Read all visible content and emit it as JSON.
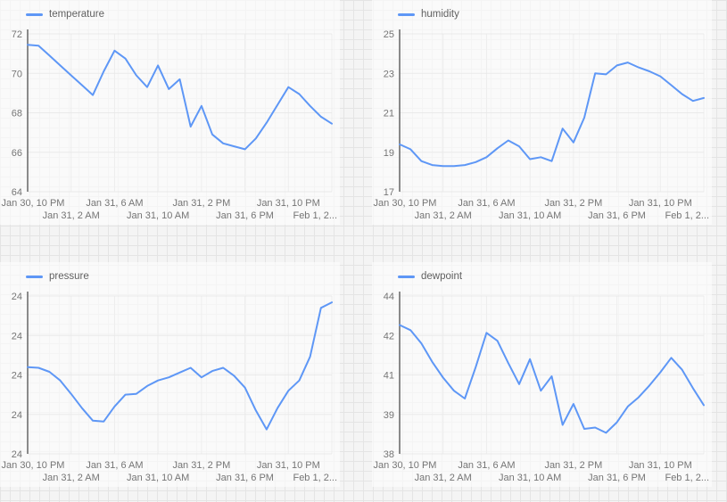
{
  "theme": {
    "line_color": "#5e97f6",
    "axis_color": "#6e6e6e",
    "label_color": "#757575",
    "legend_text_color": "#616161",
    "panel_gridline_color": "#e9e9e9",
    "paper_grid_color": "#e4e4e4",
    "background_color": "#f4f4f4"
  },
  "chart_data": [
    {
      "type": "line",
      "title": "temperature",
      "legend": [
        "temperature"
      ],
      "legend_position": "top-left",
      "color": "#5e97f6",
      "grid": true,
      "ylim": [
        64,
        72
      ],
      "y_tick_labels": [
        "72",
        "70",
        "68",
        "66",
        "64"
      ],
      "x_tick_hours": [
        0,
        4,
        8,
        12,
        16,
        20,
        24,
        28
      ],
      "x_tick_labels": [
        "Jan 30, 10 PM",
        "Jan 31, 2 AM",
        "Jan 31, 6 AM",
        "Jan 31, 10 AM",
        "Jan 31, 2 PM",
        "Jan 31, 6 PM",
        "Jan 31, 10 PM",
        "Feb 1, 2..."
      ],
      "values": [
        71.45,
        71.4,
        70.9,
        70.4,
        69.9,
        69.4,
        68.9,
        70.1,
        71.15,
        70.75,
        69.9,
        69.3,
        70.4,
        69.2,
        69.7,
        67.3,
        68.35,
        66.9,
        66.45,
        66.3,
        66.15,
        66.7,
        67.5,
        68.4,
        69.3,
        68.95,
        68.35,
        67.8,
        67.45
      ]
    },
    {
      "type": "line",
      "title": "humidity",
      "legend": [
        "humidity"
      ],
      "legend_position": "top-left",
      "color": "#5e97f6",
      "grid": true,
      "ylim": [
        17,
        25
      ],
      "y_tick_labels": [
        "25",
        "23",
        "21",
        "19",
        "17"
      ],
      "x_tick_hours": [
        0,
        4,
        8,
        12,
        16,
        20,
        24,
        28
      ],
      "x_tick_labels": [
        "Jan 30, 10 PM",
        "Jan 31, 2 AM",
        "Jan 31, 6 AM",
        "Jan 31, 10 AM",
        "Jan 31, 2 PM",
        "Jan 31, 6 PM",
        "Jan 31, 10 PM",
        "Feb 1, 2..."
      ],
      "values": [
        19.4,
        19.15,
        18.55,
        18.35,
        18.3,
        18.3,
        18.35,
        18.5,
        18.75,
        19.2,
        19.6,
        19.3,
        18.65,
        18.75,
        18.55,
        20.2,
        19.5,
        20.75,
        23.0,
        22.95,
        23.4,
        23.55,
        23.3,
        23.1,
        22.85,
        22.4,
        21.95,
        21.6,
        21.75
      ]
    },
    {
      "type": "line",
      "title": "pressure",
      "legend": [
        "pressure"
      ],
      "legend_position": "top-left",
      "color": "#5e97f6",
      "grid": true,
      "ylim": [
        23.8,
        24.0
      ],
      "y_tick_labels": [
        "24",
        "24",
        "24",
        "24",
        "24"
      ],
      "x_tick_hours": [
        0,
        4,
        8,
        12,
        16,
        20,
        24,
        28
      ],
      "x_tick_labels": [
        "Jan 30, 10 PM",
        "Jan 31, 2 AM",
        "Jan 31, 6 AM",
        "Jan 31, 10 AM",
        "Jan 31, 2 PM",
        "Jan 31, 6 PM",
        "Jan 31, 10 PM",
        "Feb 1, 2..."
      ],
      "values": [
        23.91,
        23.909,
        23.904,
        23.893,
        23.876,
        23.858,
        23.842,
        23.841,
        23.86,
        23.875,
        23.876,
        23.886,
        23.893,
        23.897,
        23.903,
        23.909,
        23.897,
        23.905,
        23.909,
        23.899,
        23.884,
        23.855,
        23.831,
        23.858,
        23.88,
        23.893,
        23.923,
        23.985,
        23.992
      ]
    },
    {
      "type": "line",
      "title": "dewpoint",
      "legend": [
        "dewpoint"
      ],
      "legend_position": "top-left",
      "color": "#5e97f6",
      "grid": true,
      "ylim": [
        38,
        44
      ],
      "y_tick_labels": [
        "44",
        "42",
        "41",
        "39",
        "38"
      ],
      "x_tick_hours": [
        0,
        4,
        8,
        12,
        16,
        20,
        24,
        28
      ],
      "x_tick_labels": [
        "Jan 30, 10 PM",
        "Jan 31, 2 AM",
        "Jan 31, 6 AM",
        "Jan 31, 10 AM",
        "Jan 31, 2 PM",
        "Jan 31, 6 PM",
        "Jan 31, 10 PM",
        "Feb 1, 2..."
      ],
      "values": [
        42.9,
        42.7,
        42.2,
        41.5,
        40.9,
        40.4,
        40.1,
        41.3,
        42.6,
        42.3,
        41.45,
        40.65,
        41.6,
        40.4,
        40.95,
        39.1,
        39.9,
        38.95,
        39.0,
        38.8,
        39.2,
        39.8,
        40.15,
        40.6,
        41.1,
        41.65,
        41.2,
        40.5,
        39.85
      ]
    }
  ]
}
